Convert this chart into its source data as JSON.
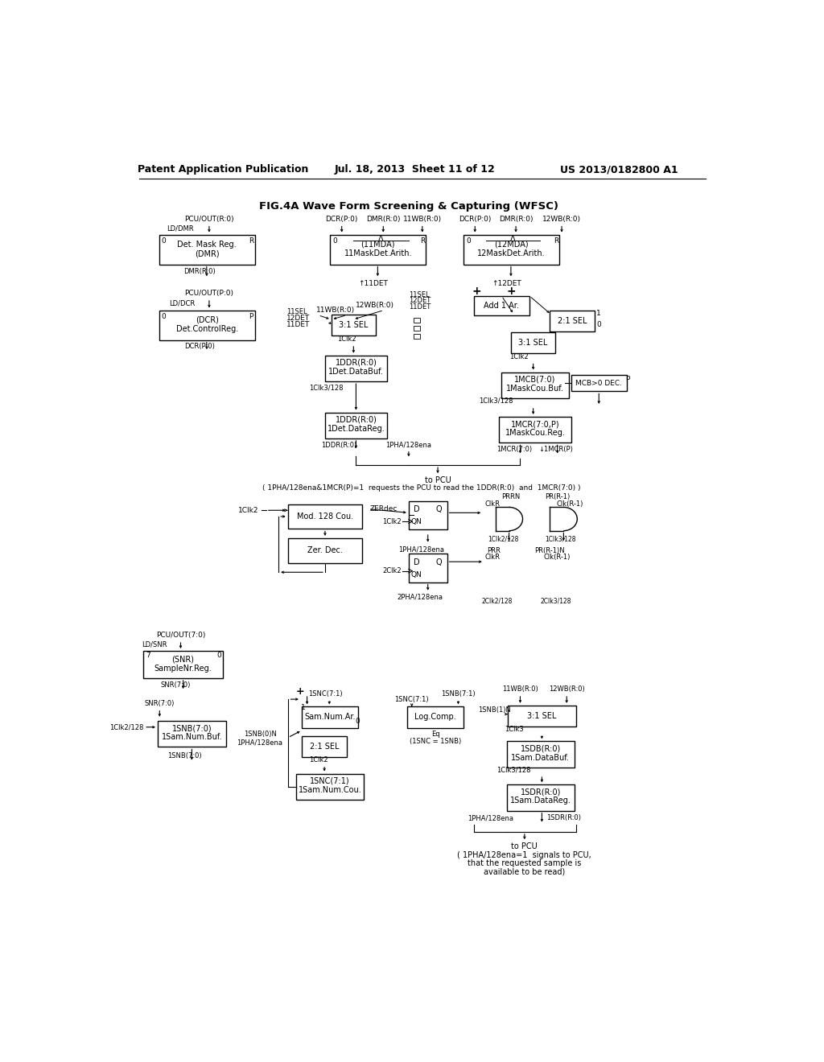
{
  "header_left": "Patent Application Publication",
  "header_center": "Jul. 18, 2013  Sheet 11 of 12",
  "header_right": "US 2013/0182800 A1",
  "fig_title": "FIG.4A Wave Form Screening & Capturing (WFSC)",
  "bg_color": "#ffffff"
}
